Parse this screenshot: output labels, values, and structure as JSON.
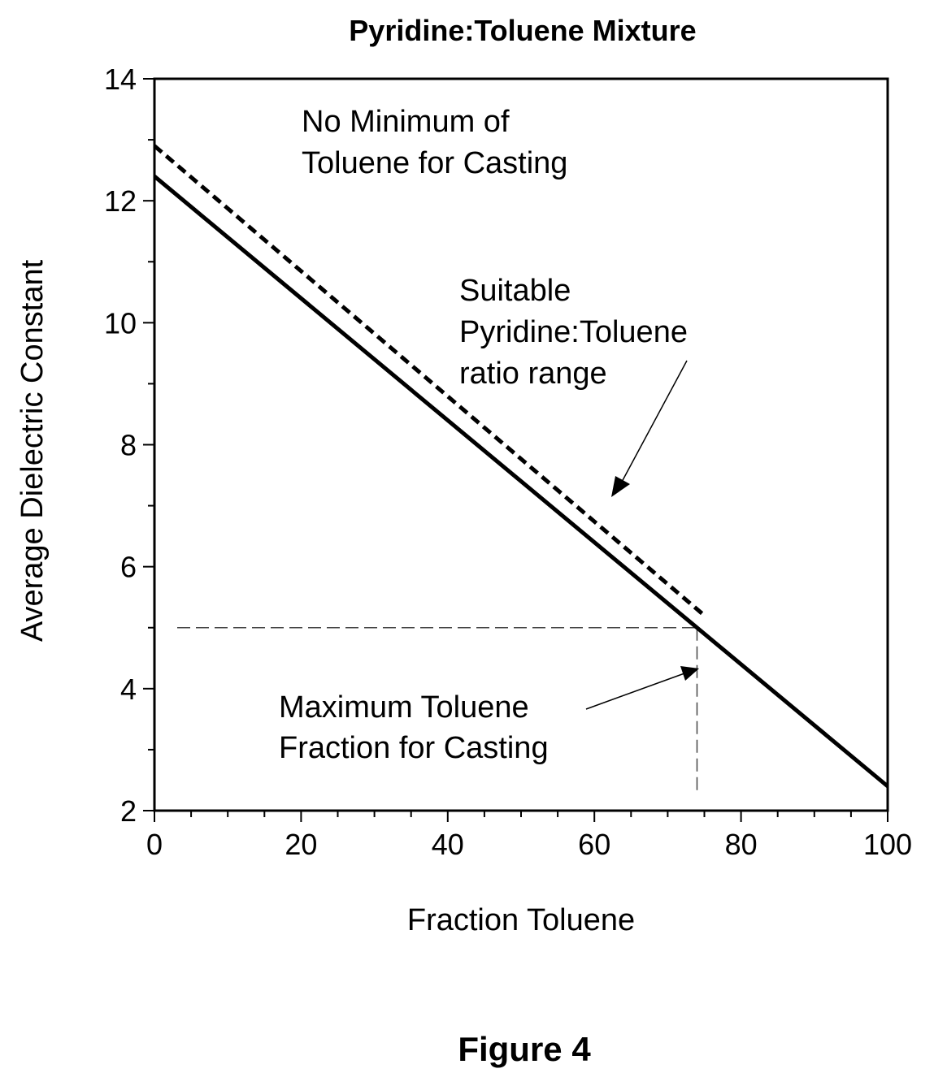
{
  "chart_data": {
    "type": "line",
    "title": "Pyridine:Toluene Mixture",
    "xlabel": "Fraction Toluene",
    "ylabel": "Average Dielectric Constant",
    "xlim": [
      0,
      100
    ],
    "ylim": [
      2,
      14
    ],
    "x_ticks": [
      "0",
      "20",
      "40",
      "60",
      "80",
      "100"
    ],
    "y_ticks": [
      "2",
      "4",
      "6",
      "8",
      "10",
      "12",
      "14"
    ],
    "grid": false,
    "series": [
      {
        "style": "solid",
        "x": [
          0,
          100
        ],
        "y": [
          12.4,
          2.4
        ]
      },
      {
        "style": "dashed",
        "x": [
          0,
          75
        ],
        "y": [
          12.9,
          5.2
        ]
      }
    ],
    "reference_lines": {
      "x": 74,
      "y": 5
    },
    "annotations": [
      {
        "lines": [
          "No Minimum of",
          "Toluene for Casting"
        ]
      },
      {
        "lines": [
          "Suitable",
          "Pyridine:Toluene",
          "ratio range"
        ]
      },
      {
        "lines": [
          "Maximum Toluene",
          "Fraction for Casting"
        ]
      }
    ]
  },
  "caption": "Figure 4"
}
